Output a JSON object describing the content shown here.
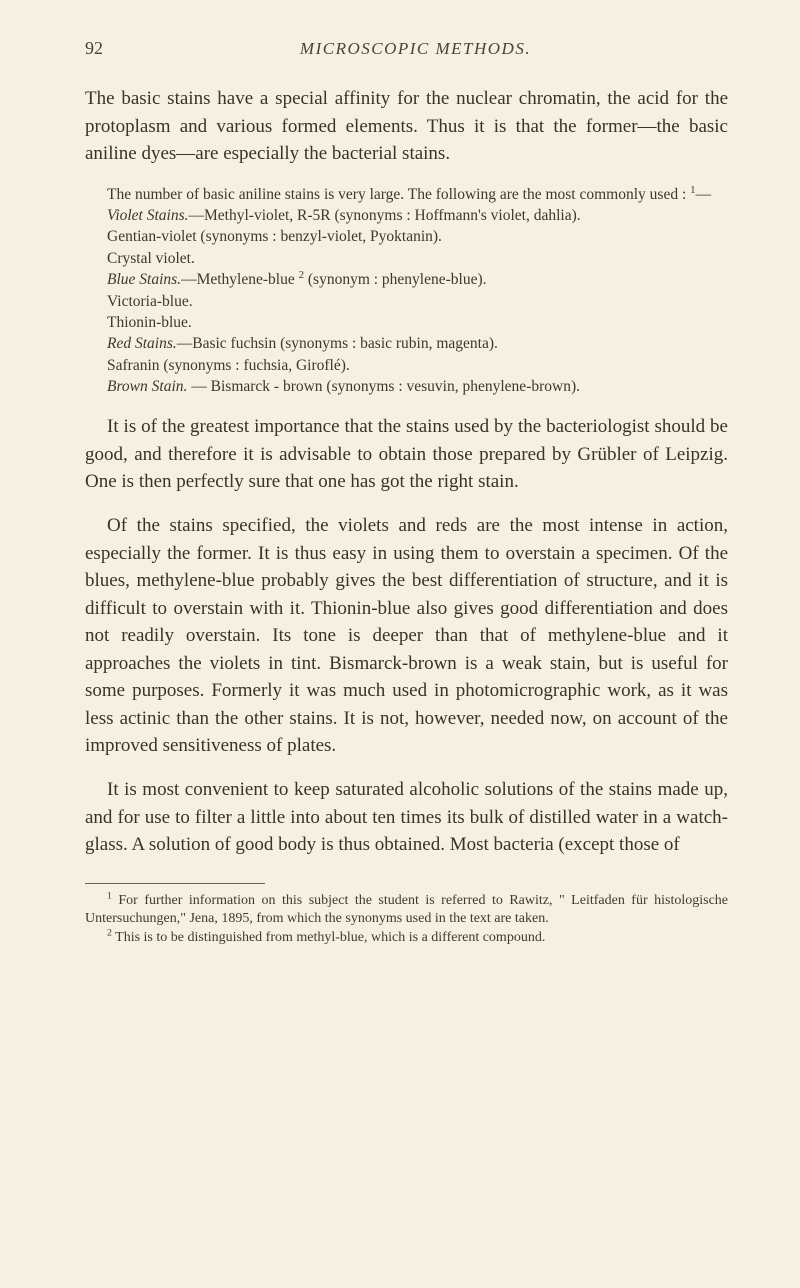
{
  "header": {
    "page_number": "92",
    "running_title": "MICROSCOPIC METHODS."
  },
  "para1": "The basic stains have a special affinity for the nuclear chromatin, the acid for the protoplasm and various formed elements. Thus it is that the former—the basic aniline dyes—are especially the bacterial stains.",
  "small_intro_a": "The number of basic aniline stains is very large. The following are the most commonly used : ",
  "small_intro_sup": "1",
  "small_intro_b": "—",
  "violet_label": "Violet Stains.",
  "violet_body": "—Methyl-violet, R-5R (synonyms : Hoffmann's violet, dahlia).",
  "gentian": "Gentian-violet (synonyms : benzyl-violet, Pyoktanin).",
  "crystal": "Crystal violet.",
  "blue_label": "Blue Stains.",
  "blue_body_a": "—Methylene-blue ",
  "blue_sup": "2",
  "blue_body_b": " (synonym : phenylene-blue).",
  "victoria": "Victoria-blue.",
  "thionin": "Thionin-blue.",
  "red_label": "Red Stains.",
  "red_body": "—Basic fuchsin (synonyms : basic rubin, magenta).",
  "safranin": "Safranin (synonyms : fuchsia, Giroflé).",
  "brown_label": "Brown Stain.",
  "brown_body": " — Bismarck - brown (synonyms : vesuvin, phenylene-brown).",
  "para2": "It is of the greatest importance that the stains used by the bacteriologist should be good, and therefore it is advisable to obtain those prepared by Grübler of Leipzig. One is then perfectly sure that one has got the right stain.",
  "para3": "Of the stains specified, the violets and reds are the most intense in action, especially the former. It is thus easy in using them to overstain a specimen. Of the blues, methylene-blue probably gives the best differentiation of structure, and it is difficult to overstain with it. Thionin-blue also gives good differentiation and does not readily overstain. Its tone is deeper than that of methylene-blue and it approaches the violets in tint. Bismarck-brown is a weak stain, but is useful for some purposes. Formerly it was much used in photomicrographic work, as it was less actinic than the other stains. It is not, however, needed now, on account of the improved sensitiveness of plates.",
  "para4": "It is most convenient to keep saturated alcoholic solutions of the stains made up, and for use to filter a little into about ten times its bulk of distilled water in a watch-glass. A solution of good body is thus obtained. Most bacteria (except those of",
  "footnote1_sup": "1",
  "footnote1": " For further information on this subject the student is referred to Rawitz, \" Leitfaden für histologische Untersuchungen,\" Jena, 1895, from which the synonyms used in the text are taken.",
  "footnote2_sup": "2",
  "footnote2": " This is to be distinguished from methyl-blue, which is a different compound."
}
